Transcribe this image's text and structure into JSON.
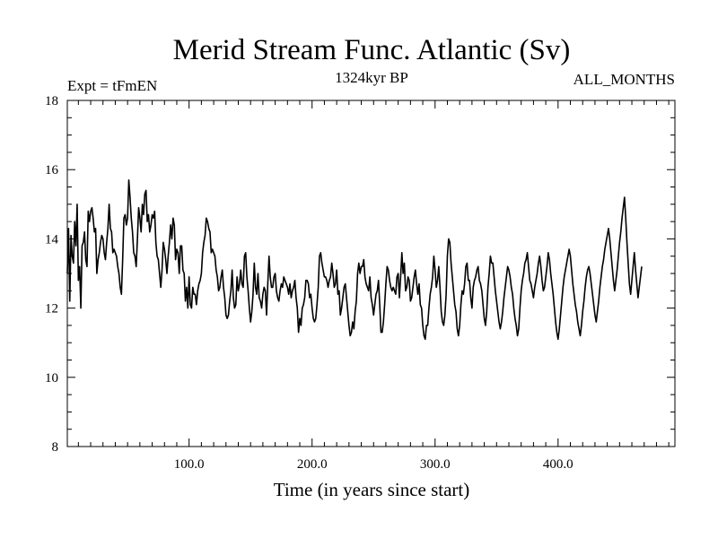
{
  "chart_data": {
    "type": "line",
    "title": "Merid Stream Func. Atlantic (Sv)",
    "subtitle": "1324kyr BP",
    "left_label": "Expt = tFmEN",
    "right_label": "ALL_MONTHS",
    "xlabel": "Time (in years since start)",
    "ylabel": "",
    "xlim": [
      1,
      495
    ],
    "ylim": [
      8,
      18
    ],
    "x_ticks": [
      100,
      200,
      300,
      400
    ],
    "x_tick_labels": [
      "100.0",
      "200.0",
      "300.0",
      "400.0"
    ],
    "y_ticks": [
      8,
      10,
      12,
      14,
      16,
      18
    ],
    "y_tick_labels": [
      "8",
      "10",
      "12",
      "14",
      "16",
      "18"
    ],
    "grid": false,
    "series": [
      {
        "name": "Merid Stream Func. Atlantic",
        "color": "#000000",
        "x_start": 1,
        "x_step": 1,
        "values": [
          13.0,
          14.3,
          12.2,
          14.1,
          13.5,
          13.3,
          14.5,
          13.8,
          15.0,
          12.8,
          13.2,
          12.0,
          13.8,
          13.9,
          14.2,
          13.4,
          13.2,
          14.8,
          14.5,
          14.8,
          14.9,
          14.6,
          14.2,
          14.3,
          13.0,
          13.4,
          13.6,
          13.9,
          14.1,
          14.0,
          13.6,
          13.4,
          13.9,
          14.3,
          15.0,
          14.3,
          14.2,
          13.6,
          13.7,
          13.6,
          13.5,
          13.2,
          13.0,
          12.6,
          12.4,
          13.4,
          14.6,
          14.7,
          14.4,
          14.6,
          15.7,
          15.2,
          14.6,
          14.2,
          13.6,
          13.5,
          13.2,
          14.0,
          14.9,
          14.6,
          14.2,
          15.0,
          14.7,
          15.3,
          15.4,
          14.5,
          14.7,
          14.2,
          14.4,
          14.7,
          14.6,
          14.8,
          13.9,
          13.5,
          13.4,
          13.0,
          12.6,
          13.1,
          13.9,
          13.7,
          13.4,
          13.0,
          13.5,
          13.9,
          14.4,
          14.0,
          14.6,
          14.4,
          13.4,
          13.7,
          13.6,
          13.0,
          13.8,
          13.8,
          13.1,
          13.0,
          12.2,
          12.6,
          12.0,
          12.9,
          12.1,
          12.0,
          12.6,
          12.4,
          12.4,
          12.1,
          12.5,
          12.7,
          12.8,
          13.0,
          13.6,
          13.9,
          14.1,
          14.6,
          14.5,
          14.3,
          14.2,
          13.6,
          13.7,
          13.6,
          13.5,
          13.1,
          12.9,
          12.5,
          12.6,
          12.9,
          13.1,
          12.6,
          12.3,
          11.8,
          11.7,
          11.8,
          12.2,
          12.5,
          13.1,
          12.3,
          12.0,
          12.1,
          12.9,
          12.5,
          12.7,
          13.1,
          12.7,
          12.6,
          13.5,
          13.6,
          12.9,
          12.5,
          12.0,
          11.6,
          11.9,
          12.4,
          13.3,
          12.6,
          12.4,
          13.0,
          12.3,
          12.2,
          12.0,
          12.4,
          12.6,
          12.5,
          11.8,
          12.7,
          13.5,
          12.9,
          12.6,
          12.6,
          12.9,
          13.0,
          12.5,
          12.3,
          12.2,
          12.5,
          12.7,
          12.6,
          12.9,
          12.8,
          12.7,
          12.6,
          12.4,
          12.7,
          12.3,
          12.5,
          12.6,
          12.8,
          12.3,
          12.0,
          11.3,
          11.7,
          11.5,
          12.0,
          12.1,
          12.3,
          12.8,
          12.8,
          12.7,
          12.3,
          12.4,
          12.0,
          11.7,
          11.6,
          11.7,
          12.1,
          12.6,
          13.5,
          13.6,
          13.3,
          13.1,
          12.9,
          12.9,
          12.8,
          12.6,
          12.8,
          12.9,
          13.3,
          13.0,
          12.6,
          12.7,
          13.1,
          12.4,
          12.5,
          11.8,
          12.0,
          12.3,
          12.6,
          12.7,
          12.3,
          11.9,
          11.5,
          11.2,
          11.3,
          11.6,
          11.4,
          11.9,
          12.2,
          13.0,
          13.3,
          13.0,
          13.2,
          13.2,
          13.4,
          12.9,
          12.7,
          12.6,
          12.5,
          12.9,
          12.3,
          12.1,
          11.8,
          12.1,
          12.4,
          12.5,
          12.8,
          12.1,
          11.3,
          11.3,
          11.6,
          12.1,
          12.7,
          13.2,
          13.1,
          12.8,
          12.6,
          12.5,
          12.6,
          12.5,
          12.4,
          12.9,
          13.0,
          12.3,
          12.9,
          13.6,
          13.0,
          13.3,
          12.5,
          12.6,
          12.9,
          12.8,
          12.2,
          12.3,
          12.6,
          12.9,
          13.1,
          12.7,
          12.4,
          12.7,
          12.1,
          12.0,
          11.5,
          11.2,
          11.1,
          11.5,
          11.5,
          12.0,
          12.4,
          12.6,
          12.9,
          13.5,
          13.1,
          12.6,
          12.8,
          13.2,
          12.6,
          11.9,
          11.6,
          11.5,
          11.8,
          12.4,
          13.5,
          14.0,
          13.9,
          13.3,
          12.9,
          12.5,
          12.1,
          11.9,
          11.4,
          11.2,
          11.5,
          12.1,
          12.5,
          12.4,
          12.7,
          13.2,
          13.3,
          12.8,
          12.8,
          12.3,
          12.0,
          12.6,
          12.8,
          12.9,
          13.1,
          13.2,
          12.8,
          12.7,
          12.5,
          12.1,
          11.7,
          11.5,
          11.9,
          12.6,
          13.0,
          13.5,
          13.3,
          13.3,
          12.9,
          12.5,
          12.2,
          11.9,
          11.6,
          11.4,
          11.6,
          11.9,
          12.3,
          12.6,
          12.9,
          13.2,
          13.1,
          12.9,
          12.6,
          12.4,
          12.0,
          11.7,
          11.5,
          11.2,
          11.4,
          12.0,
          12.5,
          12.8,
          13.0,
          13.3,
          13.4,
          13.6,
          13.2,
          12.8,
          12.7,
          12.5,
          12.3,
          12.6,
          12.8,
          13.0,
          13.3,
          13.5,
          13.2,
          12.8,
          12.5,
          12.6,
          12.9,
          13.2,
          13.6,
          13.4,
          13.0,
          12.7,
          12.4,
          12.0,
          11.6,
          11.3,
          11.1,
          11.4,
          11.8,
          12.2,
          12.6,
          12.9,
          13.1,
          13.3,
          13.5,
          13.7,
          13.5,
          13.1,
          12.7,
          12.4,
          12.1,
          11.9,
          11.6,
          11.4,
          11.2,
          11.5,
          11.9,
          12.2,
          12.6,
          12.9,
          13.1,
          13.2,
          13.0,
          12.7,
          12.4,
          12.1,
          11.8,
          11.6,
          11.9,
          12.2,
          12.6,
          12.9,
          13.2,
          13.4,
          13.7,
          13.9,
          14.1,
          14.3,
          14.0,
          13.6,
          13.2,
          12.8,
          12.5,
          12.8,
          13.1,
          13.5,
          13.9,
          14.2,
          14.6,
          14.9,
          15.2,
          14.6,
          13.9,
          13.3,
          12.7,
          12.4,
          12.8,
          13.2,
          13.6,
          13.1,
          12.7,
          12.3,
          12.6,
          12.9,
          13.2
        ]
      }
    ]
  }
}
